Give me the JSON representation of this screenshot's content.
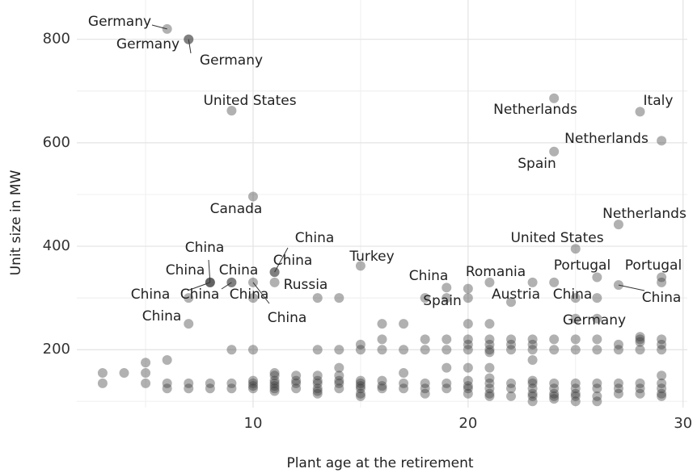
{
  "chart_data": {
    "type": "scatter",
    "x_label": "Plant age at the retirement",
    "y_label": "Unit size in MW",
    "xlim": [
      1.8,
      30.2
    ],
    "ylim": [
      88,
      876
    ],
    "xticks": [
      10,
      20,
      30
    ],
    "yticks": [
      200,
      400,
      600,
      800
    ],
    "grid": true,
    "color": "#333333",
    "series": [
      {
        "x": [
          6,
          7,
          7,
          9,
          10,
          8,
          8,
          9,
          8,
          9,
          10,
          11,
          11,
          11,
          10,
          7,
          15,
          18,
          19,
          20,
          22,
          24,
          24,
          29,
          28,
          27,
          25,
          26,
          29,
          25,
          27,
          28
        ],
        "values": [
          820,
          800,
          800,
          662,
          496,
          330,
          330,
          330,
          330,
          330,
          300,
          350,
          350,
          330,
          330,
          250,
          362,
          300,
          320,
          318,
          292,
          686,
          583,
          604,
          660,
          442,
          395,
          340,
          340,
          300,
          325,
          220
        ],
        "labels": [
          "Germany",
          "Germany",
          "Germany",
          "United States",
          "Canada",
          "China",
          "China",
          "China",
          "China",
          "China",
          "China",
          "China",
          "China",
          "Russia",
          "China",
          "China",
          "Turkey",
          "China",
          "Spain",
          "Romania",
          "Austria",
          "Netherlands",
          "Spain",
          "Netherlands",
          "Italy",
          "Netherlands",
          "United States",
          "Portugal",
          "Portugal",
          "China",
          "China",
          "Germany"
        ]
      },
      {
        "x": [
          3,
          3,
          4,
          5,
          5,
          5,
          6,
          6,
          6,
          7,
          7,
          7,
          8,
          8,
          9,
          9,
          9,
          10,
          10,
          10,
          10,
          10,
          11,
          11,
          11,
          11,
          11,
          11,
          11,
          12,
          12,
          12,
          12,
          13,
          13,
          13,
          13,
          13,
          13,
          13,
          13,
          14,
          14,
          14,
          14,
          14,
          14,
          14,
          15,
          15,
          15,
          15,
          15,
          15,
          15,
          15,
          16,
          16,
          16,
          16,
          16,
          16,
          17,
          17,
          17,
          17,
          17,
          18,
          18,
          18,
          18,
          18,
          19,
          19,
          19,
          19,
          19,
          19,
          20,
          20,
          20,
          20,
          20,
          20,
          20,
          20,
          20,
          20,
          21,
          21,
          21,
          21,
          21,
          21,
          21,
          21,
          21,
          21,
          21,
          21,
          22,
          22,
          22,
          22,
          22,
          22,
          23,
          23,
          23,
          23,
          23,
          23,
          23,
          23,
          23,
          23,
          23,
          24,
          24,
          24,
          24,
          24,
          24,
          24,
          24,
          25,
          25,
          25,
          25,
          25,
          25,
          25,
          25,
          26,
          26,
          26,
          26,
          26,
          26,
          26,
          26,
          27,
          27,
          27,
          27,
          27,
          28,
          28,
          28,
          28,
          28,
          28,
          29,
          29,
          29,
          29,
          29,
          29,
          29,
          29,
          29
        ],
        "values": [
          155,
          135,
          155,
          175,
          155,
          135,
          180,
          135,
          125,
          300,
          135,
          125,
          135,
          125,
          200,
          135,
          125,
          200,
          140,
          135,
          130,
          125,
          155,
          150,
          140,
          135,
          130,
          125,
          120,
          150,
          140,
          135,
          125,
          300,
          200,
          150,
          140,
          135,
          125,
          120,
          115,
          300,
          200,
          165,
          150,
          140,
          135,
          125,
          210,
          200,
          140,
          135,
          130,
          125,
          115,
          110,
          250,
          220,
          200,
          140,
          130,
          125,
          250,
          200,
          155,
          135,
          125,
          220,
          200,
          135,
          125,
          115,
          300,
          220,
          200,
          165,
          135,
          125,
          300,
          250,
          220,
          210,
          200,
          165,
          140,
          130,
          125,
          115,
          330,
          250,
          220,
          210,
          200,
          195,
          165,
          145,
          135,
          125,
          115,
          110,
          220,
          210,
          200,
          135,
          125,
          110,
          330,
          220,
          210,
          200,
          180,
          140,
          135,
          125,
          115,
          110,
          100,
          330,
          220,
          200,
          135,
          125,
          115,
          110,
          105,
          260,
          220,
          200,
          135,
          125,
          115,
          110,
          100,
          300,
          260,
          220,
          200,
          135,
          125,
          110,
          100,
          210,
          200,
          135,
          125,
          115,
          225,
          215,
          200,
          135,
          125,
          115,
          330,
          220,
          210,
          200,
          150,
          135,
          125,
          115,
          110
        ]
      }
    ]
  }
}
